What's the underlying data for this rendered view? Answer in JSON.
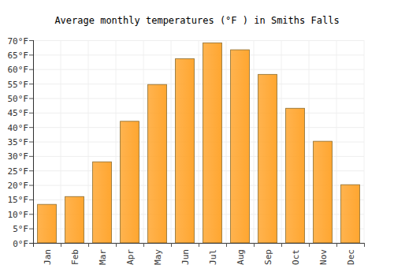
{
  "chart_data": {
    "type": "bar",
    "title": "Average monthly temperatures (°F ) in Smiths Falls",
    "categories": [
      "Jan",
      "Feb",
      "Mar",
      "Apr",
      "May",
      "Jun",
      "Jul",
      "Aug",
      "Sep",
      "Oct",
      "Nov",
      "Dec"
    ],
    "values": [
      13.3,
      16.0,
      28.0,
      42.0,
      54.7,
      63.6,
      69.1,
      66.7,
      58.2,
      46.5,
      35.1,
      20.1
    ],
    "color": "#ffa630",
    "ylim": [
      0,
      70
    ],
    "yticks": [
      {
        "value": 0,
        "label": "0°F"
      },
      {
        "value": 5,
        "label": "5°F"
      },
      {
        "value": 10,
        "label": "10°F"
      },
      {
        "value": 15,
        "label": "15°F"
      },
      {
        "value": 20,
        "label": "20°F"
      },
      {
        "value": 25,
        "label": "25°F"
      },
      {
        "value": 30,
        "label": "30°F"
      },
      {
        "value": 35,
        "label": "35°F"
      },
      {
        "value": 40,
        "label": "40°F"
      },
      {
        "value": 45,
        "label": "45°F"
      },
      {
        "value": 50,
        "label": "50°F"
      },
      {
        "value": 55,
        "label": "55°F"
      },
      {
        "value": 60,
        "label": "60°F"
      },
      {
        "value": 65,
        "label": "65°F"
      },
      {
        "value": 70,
        "label": "70°F"
      }
    ],
    "grid": true
  }
}
